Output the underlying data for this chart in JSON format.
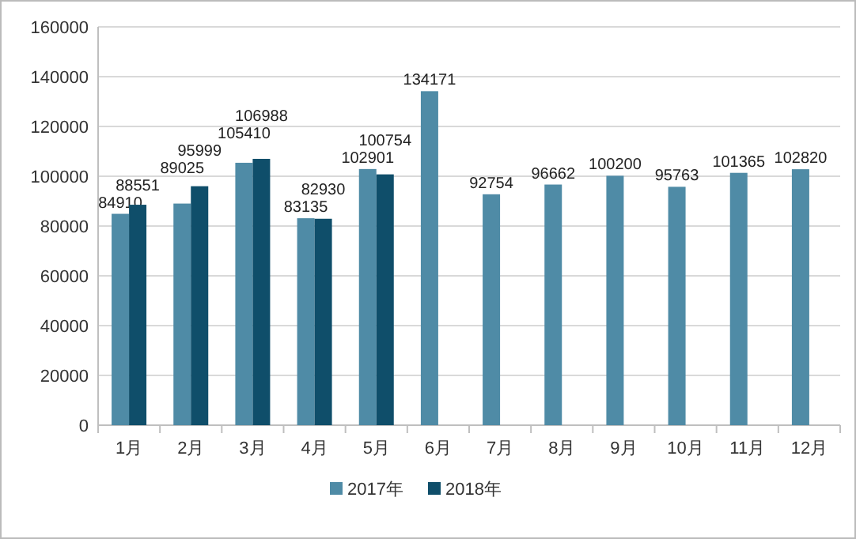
{
  "chart_data": {
    "type": "bar",
    "categories": [
      "1月",
      "2月",
      "3月",
      "4月",
      "5月",
      "6月",
      "7月",
      "8月",
      "9月",
      "10月",
      "11月",
      "12月"
    ],
    "series": [
      {
        "name": "2017年",
        "color": "#4f8ba6",
        "values": [
          84910,
          89025,
          105410,
          83135,
          102901,
          134171,
          92754,
          96662,
          100200,
          95763,
          101365,
          102820
        ]
      },
      {
        "name": "2018年",
        "color": "#0f4e6a",
        "values": [
          88551,
          95999,
          106988,
          82930,
          100754,
          null,
          null,
          null,
          null,
          null,
          null,
          null
        ]
      }
    ],
    "ylim": [
      0,
      160000
    ],
    "yticks": [
      0,
      20000,
      40000,
      60000,
      80000,
      100000,
      120000,
      140000,
      160000
    ],
    "grid": "y",
    "legend": "bottom",
    "data_labels": true
  }
}
